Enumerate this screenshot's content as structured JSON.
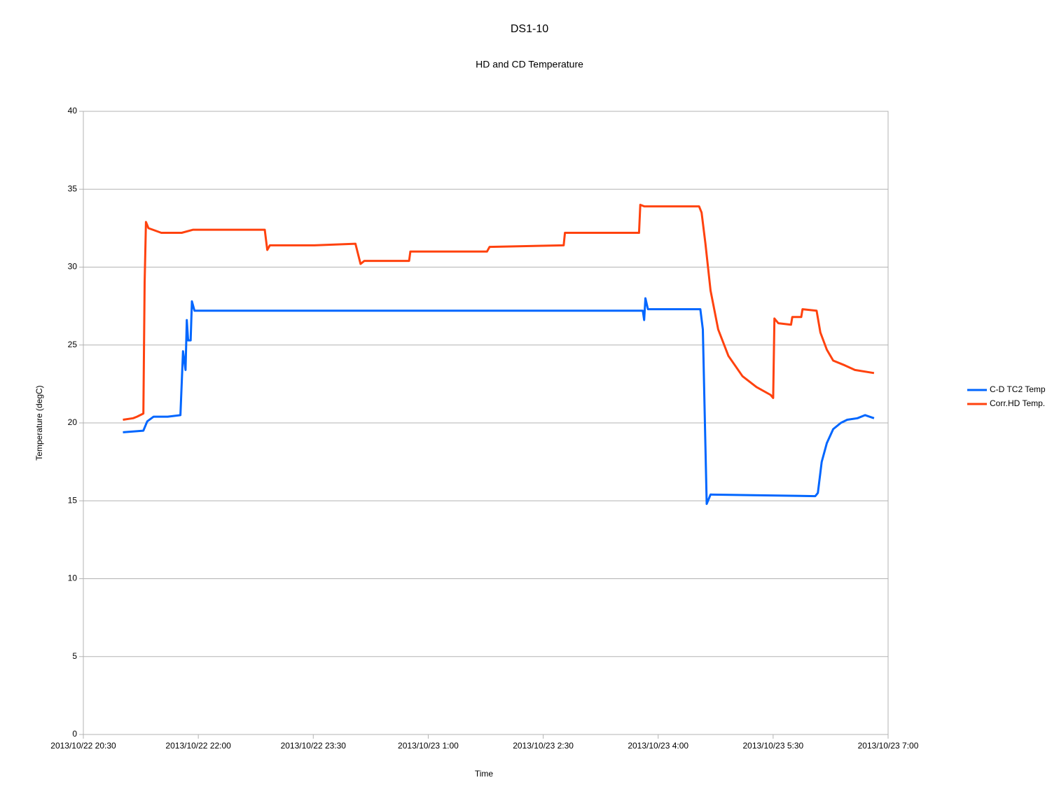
{
  "chart_data": {
    "type": "line",
    "title": "DS1-10",
    "subtitle": "HD and CD Temperature",
    "x_label": "Time",
    "y_label": "Temperature (degC)",
    "xlim": [
      "2013/10/22 20:30",
      "2013/10/23 7:00"
    ],
    "xticks": [
      "2013/10/22 20:30",
      "2013/10/22 22:00",
      "2013/10/22 23:30",
      "2013/10/23 1:00",
      "2013/10/23 2:30",
      "2013/10/23 4:00",
      "2013/10/23 5:30",
      "2013/10/23 7:00"
    ],
    "ylim": [
      0,
      40
    ],
    "yticks": [
      0,
      5,
      10,
      15,
      20,
      25,
      30,
      35,
      40
    ],
    "grid": true,
    "legend": "right",
    "series": [
      {
        "name": "C-D TC2 Temp",
        "color": "#0066ff",
        "x": [
          "2013/10/22 21:01",
          "2013/10/22 21:17",
          "2013/10/22 21:20",
          "2013/10/22 21:25",
          "2013/10/22 21:36",
          "2013/10/22 21:46",
          "2013/10/22 21:48",
          "2013/10/22 21:50",
          "2013/10/22 21:51",
          "2013/10/22 21:52",
          "2013/10/22 21:54",
          "2013/10/22 21:55",
          "2013/10/22 21:57",
          "2013/10/23 3:48",
          "2013/10/23 3:49",
          "2013/10/23 3:50",
          "2013/10/23 3:52",
          "2013/10/23 4:33",
          "2013/10/23 4:35",
          "2013/10/23 4:38",
          "2013/10/23 4:41",
          "2013/10/23 6:03",
          "2013/10/23 6:05",
          "2013/10/23 6:08",
          "2013/10/23 6:12",
          "2013/10/23 6:17",
          "2013/10/23 6:23",
          "2013/10/23 6:28",
          "2013/10/23 6:36",
          "2013/10/23 6:42",
          "2013/10/23 6:49"
        ],
        "values": [
          19.4,
          19.5,
          20.1,
          20.4,
          20.4,
          20.5,
          24.6,
          23.4,
          26.6,
          25.3,
          25.3,
          27.8,
          27.2,
          27.2,
          26.6,
          28.0,
          27.3,
          27.3,
          26.0,
          14.8,
          15.4,
          15.3,
          15.5,
          17.5,
          18.7,
          19.6,
          20.0,
          20.2,
          20.3,
          20.5,
          20.3
        ]
      },
      {
        "name": "Corr.HD Temp.",
        "color": "#ff420e",
        "x": [
          "2013/10/22 21:01",
          "2013/10/22 21:09",
          "2013/10/22 21:12",
          "2013/10/22 21:17",
          "2013/10/22 21:18",
          "2013/10/22 21:19",
          "2013/10/22 21:21",
          "2013/10/22 21:31",
          "2013/10/22 21:47",
          "2013/10/22 21:56",
          "2013/10/22 22:52",
          "2013/10/22 22:54",
          "2013/10/22 22:56",
          "2013/10/22 23:31",
          "2013/10/23 0:03",
          "2013/10/23 0:07",
          "2013/10/23 0:10",
          "2013/10/23 0:45",
          "2013/10/23 0:46",
          "2013/10/23 1:10",
          "2013/10/23 1:46",
          "2013/10/23 1:48",
          "2013/10/23 2:46",
          "2013/10/23 2:47",
          "2013/10/23 3:45",
          "2013/10/23 3:46",
          "2013/10/23 3:49",
          "2013/10/23 4:32",
          "2013/10/23 4:34",
          "2013/10/23 4:37",
          "2013/10/23 4:41",
          "2013/10/23 4:47",
          "2013/10/23 4:55",
          "2013/10/23 5:06",
          "2013/10/23 5:17",
          "2013/10/23 5:28",
          "2013/10/23 5:30",
          "2013/10/23 5:31",
          "2013/10/23 5:34",
          "2013/10/23 5:44",
          "2013/10/23 5:45",
          "2013/10/23 5:52",
          "2013/10/23 5:53",
          "2013/10/23 6:04",
          "2013/10/23 6:07",
          "2013/10/23 6:12",
          "2013/10/23 6:17",
          "2013/10/23 6:26",
          "2013/10/23 6:34",
          "2013/10/23 6:49"
        ],
        "values": [
          20.2,
          20.3,
          20.4,
          20.6,
          29.0,
          32.9,
          32.5,
          32.2,
          32.2,
          32.4,
          32.4,
          31.1,
          31.4,
          31.4,
          31.5,
          30.2,
          30.4,
          30.4,
          31.0,
          31.0,
          31.0,
          31.3,
          31.4,
          32.2,
          32.2,
          34.0,
          33.9,
          33.9,
          33.5,
          31.5,
          28.5,
          26.0,
          24.3,
          23.0,
          22.3,
          21.8,
          21.6,
          26.7,
          26.4,
          26.3,
          26.8,
          26.8,
          27.3,
          27.2,
          25.8,
          24.7,
          24.0,
          23.7,
          23.4,
          23.2
        ]
      }
    ]
  }
}
